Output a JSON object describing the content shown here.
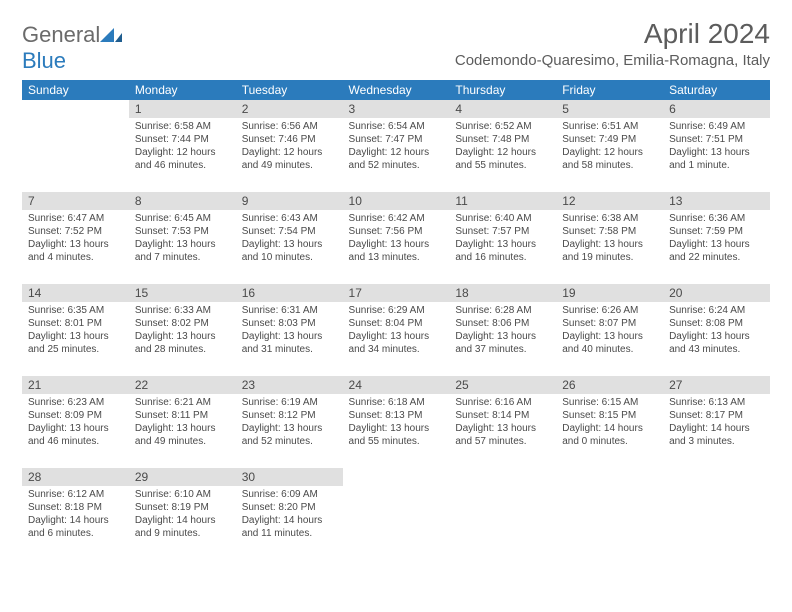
{
  "logo": {
    "part1": "General",
    "part2": "Blue"
  },
  "title": "April 2024",
  "location": "Codemondo-Quaresimo, Emilia-Romagna, Italy",
  "colors": {
    "header_bg": "#2b7bbc",
    "header_text": "#ffffff",
    "daynum_bg": "#e0e0e0",
    "text": "#4a4a4a",
    "logo_gray": "#6b6b6b"
  },
  "weekdays": [
    "Sunday",
    "Monday",
    "Tuesday",
    "Wednesday",
    "Thursday",
    "Friday",
    "Saturday"
  ],
  "weeks": [
    [
      null,
      {
        "n": "1",
        "sr": "Sunrise: 6:58 AM",
        "ss": "Sunset: 7:44 PM",
        "d1": "Daylight: 12 hours",
        "d2": "and 46 minutes."
      },
      {
        "n": "2",
        "sr": "Sunrise: 6:56 AM",
        "ss": "Sunset: 7:46 PM",
        "d1": "Daylight: 12 hours",
        "d2": "and 49 minutes."
      },
      {
        "n": "3",
        "sr": "Sunrise: 6:54 AM",
        "ss": "Sunset: 7:47 PM",
        "d1": "Daylight: 12 hours",
        "d2": "and 52 minutes."
      },
      {
        "n": "4",
        "sr": "Sunrise: 6:52 AM",
        "ss": "Sunset: 7:48 PM",
        "d1": "Daylight: 12 hours",
        "d2": "and 55 minutes."
      },
      {
        "n": "5",
        "sr": "Sunrise: 6:51 AM",
        "ss": "Sunset: 7:49 PM",
        "d1": "Daylight: 12 hours",
        "d2": "and 58 minutes."
      },
      {
        "n": "6",
        "sr": "Sunrise: 6:49 AM",
        "ss": "Sunset: 7:51 PM",
        "d1": "Daylight: 13 hours",
        "d2": "and 1 minute."
      }
    ],
    [
      {
        "n": "7",
        "sr": "Sunrise: 6:47 AM",
        "ss": "Sunset: 7:52 PM",
        "d1": "Daylight: 13 hours",
        "d2": "and 4 minutes."
      },
      {
        "n": "8",
        "sr": "Sunrise: 6:45 AM",
        "ss": "Sunset: 7:53 PM",
        "d1": "Daylight: 13 hours",
        "d2": "and 7 minutes."
      },
      {
        "n": "9",
        "sr": "Sunrise: 6:43 AM",
        "ss": "Sunset: 7:54 PM",
        "d1": "Daylight: 13 hours",
        "d2": "and 10 minutes."
      },
      {
        "n": "10",
        "sr": "Sunrise: 6:42 AM",
        "ss": "Sunset: 7:56 PM",
        "d1": "Daylight: 13 hours",
        "d2": "and 13 minutes."
      },
      {
        "n": "11",
        "sr": "Sunrise: 6:40 AM",
        "ss": "Sunset: 7:57 PM",
        "d1": "Daylight: 13 hours",
        "d2": "and 16 minutes."
      },
      {
        "n": "12",
        "sr": "Sunrise: 6:38 AM",
        "ss": "Sunset: 7:58 PM",
        "d1": "Daylight: 13 hours",
        "d2": "and 19 minutes."
      },
      {
        "n": "13",
        "sr": "Sunrise: 6:36 AM",
        "ss": "Sunset: 7:59 PM",
        "d1": "Daylight: 13 hours",
        "d2": "and 22 minutes."
      }
    ],
    [
      {
        "n": "14",
        "sr": "Sunrise: 6:35 AM",
        "ss": "Sunset: 8:01 PM",
        "d1": "Daylight: 13 hours",
        "d2": "and 25 minutes."
      },
      {
        "n": "15",
        "sr": "Sunrise: 6:33 AM",
        "ss": "Sunset: 8:02 PM",
        "d1": "Daylight: 13 hours",
        "d2": "and 28 minutes."
      },
      {
        "n": "16",
        "sr": "Sunrise: 6:31 AM",
        "ss": "Sunset: 8:03 PM",
        "d1": "Daylight: 13 hours",
        "d2": "and 31 minutes."
      },
      {
        "n": "17",
        "sr": "Sunrise: 6:29 AM",
        "ss": "Sunset: 8:04 PM",
        "d1": "Daylight: 13 hours",
        "d2": "and 34 minutes."
      },
      {
        "n": "18",
        "sr": "Sunrise: 6:28 AM",
        "ss": "Sunset: 8:06 PM",
        "d1": "Daylight: 13 hours",
        "d2": "and 37 minutes."
      },
      {
        "n": "19",
        "sr": "Sunrise: 6:26 AM",
        "ss": "Sunset: 8:07 PM",
        "d1": "Daylight: 13 hours",
        "d2": "and 40 minutes."
      },
      {
        "n": "20",
        "sr": "Sunrise: 6:24 AM",
        "ss": "Sunset: 8:08 PM",
        "d1": "Daylight: 13 hours",
        "d2": "and 43 minutes."
      }
    ],
    [
      {
        "n": "21",
        "sr": "Sunrise: 6:23 AM",
        "ss": "Sunset: 8:09 PM",
        "d1": "Daylight: 13 hours",
        "d2": "and 46 minutes."
      },
      {
        "n": "22",
        "sr": "Sunrise: 6:21 AM",
        "ss": "Sunset: 8:11 PM",
        "d1": "Daylight: 13 hours",
        "d2": "and 49 minutes."
      },
      {
        "n": "23",
        "sr": "Sunrise: 6:19 AM",
        "ss": "Sunset: 8:12 PM",
        "d1": "Daylight: 13 hours",
        "d2": "and 52 minutes."
      },
      {
        "n": "24",
        "sr": "Sunrise: 6:18 AM",
        "ss": "Sunset: 8:13 PM",
        "d1": "Daylight: 13 hours",
        "d2": "and 55 minutes."
      },
      {
        "n": "25",
        "sr": "Sunrise: 6:16 AM",
        "ss": "Sunset: 8:14 PM",
        "d1": "Daylight: 13 hours",
        "d2": "and 57 minutes."
      },
      {
        "n": "26",
        "sr": "Sunrise: 6:15 AM",
        "ss": "Sunset: 8:15 PM",
        "d1": "Daylight: 14 hours",
        "d2": "and 0 minutes."
      },
      {
        "n": "27",
        "sr": "Sunrise: 6:13 AM",
        "ss": "Sunset: 8:17 PM",
        "d1": "Daylight: 14 hours",
        "d2": "and 3 minutes."
      }
    ],
    [
      {
        "n": "28",
        "sr": "Sunrise: 6:12 AM",
        "ss": "Sunset: 8:18 PM",
        "d1": "Daylight: 14 hours",
        "d2": "and 6 minutes."
      },
      {
        "n": "29",
        "sr": "Sunrise: 6:10 AM",
        "ss": "Sunset: 8:19 PM",
        "d1": "Daylight: 14 hours",
        "d2": "and 9 minutes."
      },
      {
        "n": "30",
        "sr": "Sunrise: 6:09 AM",
        "ss": "Sunset: 8:20 PM",
        "d1": "Daylight: 14 hours",
        "d2": "and 11 minutes."
      },
      null,
      null,
      null,
      null
    ]
  ]
}
